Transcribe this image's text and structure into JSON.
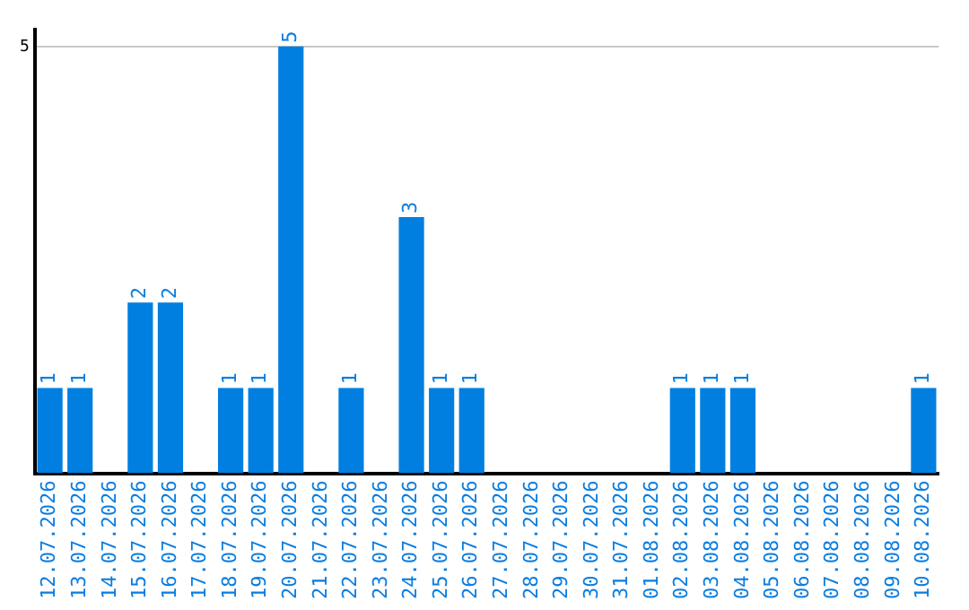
{
  "chart_data": {
    "type": "bar",
    "categories": [
      "12.07.2026",
      "13.07.2026",
      "14.07.2026",
      "15.07.2026",
      "16.07.2026",
      "17.07.2026",
      "18.07.2026",
      "19.07.2026",
      "20.07.2026",
      "21.07.2026",
      "22.07.2026",
      "23.07.2026",
      "24.07.2026",
      "25.07.2026",
      "26.07.2026",
      "27.07.2026",
      "28.07.2026",
      "29.07.2026",
      "30.07.2026",
      "31.07.2026",
      "01.08.2026",
      "02.08.2026",
      "03.08.2026",
      "04.08.2026",
      "05.08.2026",
      "06.08.2026",
      "07.08.2026",
      "08.08.2026",
      "09.08.2026",
      "10.08.2026"
    ],
    "values": [
      1,
      1,
      0,
      2,
      2,
      0,
      1,
      1,
      5,
      0,
      1,
      0,
      3,
      1,
      1,
      0,
      0,
      0,
      0,
      0,
      0,
      1,
      1,
      1,
      0,
      0,
      0,
      0,
      0,
      1
    ],
    "value_labels": [
      "1",
      "1",
      null,
      "2",
      "2",
      null,
      "1",
      "1",
      "5",
      null,
      "1",
      null,
      "3",
      "1",
      "1",
      null,
      null,
      null,
      null,
      null,
      null,
      "1",
      "1",
      "1",
      null,
      null,
      null,
      null,
      null,
      "1"
    ],
    "color": "#007fe0",
    "ylim": [
      0,
      5.2
    ],
    "yticks": [
      5
    ],
    "grid": "y",
    "legend": false
  }
}
